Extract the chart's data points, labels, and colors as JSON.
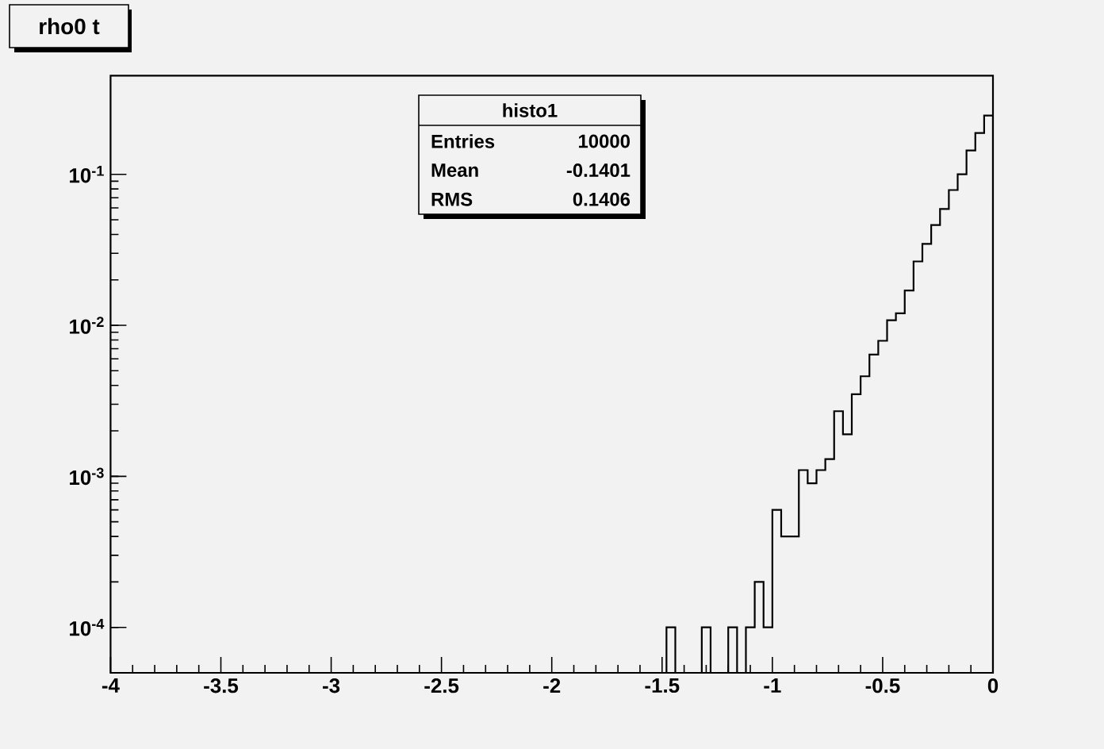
{
  "chart_data": {
    "type": "histogram",
    "title": "rho0 t",
    "annotations": [
      "histo1",
      "Entries",
      "10000",
      "Mean",
      "-0.1401",
      "RMS",
      "0.1406"
    ],
    "bins": [
      -4,
      -3.96,
      -3.92,
      -3.88,
      -3.84,
      -3.8,
      -3.76,
      -3.72,
      -3.68,
      -3.64,
      -3.6,
      -3.56,
      -3.52,
      -3.48,
      -3.44,
      -3.4,
      -3.36,
      -3.32,
      -3.28,
      -3.24,
      -3.2,
      -3.16,
      -3.12,
      -3.08,
      -3.04,
      -3,
      -2.96,
      -2.92,
      -2.88,
      -2.84,
      -2.8,
      -2.76,
      -2.72,
      -2.68,
      -2.64,
      -2.6,
      -2.56,
      -2.52,
      -2.48,
      -2.44,
      -2.4,
      -2.36,
      -2.32,
      -2.28,
      -2.24,
      -2.2,
      -2.16,
      -2.12,
      -2.08,
      -2.04,
      -2,
      -1.96,
      -1.92,
      -1.88,
      -1.84,
      -1.8,
      -1.76,
      -1.72,
      -1.68,
      -1.64,
      -1.6,
      -1.56,
      -1.52,
      -1.48,
      -1.44,
      -1.4,
      -1.36,
      -1.32,
      -1.28,
      -1.24,
      -1.2,
      -1.16,
      -1.12,
      -1.08,
      -1.04,
      -1,
      -0.96,
      -0.92,
      -0.88,
      -0.84,
      -0.8,
      -0.76,
      -0.72,
      -0.68,
      -0.64,
      -0.6,
      -0.56,
      -0.52,
      -0.48,
      -0.44,
      -0.4,
      -0.36,
      -0.32,
      -0.28,
      -0.24,
      -0.2,
      -0.16,
      -0.12,
      -0.08,
      -0.04,
      0
    ],
    "values": [
      null,
      null,
      null,
      null,
      null,
      null,
      null,
      null,
      null,
      null,
      null,
      null,
      null,
      null,
      null,
      null,
      null,
      null,
      null,
      null,
      null,
      null,
      null,
      null,
      null,
      null,
      null,
      null,
      null,
      null,
      null,
      null,
      null,
      null,
      null,
      null,
      null,
      null,
      null,
      null,
      null,
      null,
      null,
      null,
      null,
      null,
      null,
      null,
      null,
      null,
      null,
      null,
      null,
      null,
      null,
      null,
      null,
      null,
      null,
      null,
      null,
      null,
      null,
      0.0001,
      null,
      null,
      null,
      0.0001,
      null,
      null,
      0.0001,
      null,
      0.0001,
      0.0002,
      0.0001,
      0.0006,
      0.0004,
      0.0004,
      0.0011,
      0.0009,
      0.0011,
      0.0013,
      0.0027,
      0.0019,
      0.0035,
      0.0046,
      0.0064,
      0.0079,
      0.0108,
      0.012,
      0.017,
      0.0265,
      0.0346,
      0.0462,
      0.0589,
      0.0787,
      0.1,
      0.144,
      0.188,
      0.245
    ],
    "color": "#000000",
    "log": "y",
    "xlim": [
      -4,
      0
    ],
    "xticks": [
      -4,
      -3.5,
      -3,
      -2.5,
      -2,
      -1.5,
      -1,
      -0.5,
      0
    ],
    "ylim": [
      5e-05,
      0.45
    ],
    "yticks": [
      {
        "value": 0.0001,
        "label": "10$^{-4}$"
      },
      {
        "value": 0.001,
        "label": "10$^{-3}$"
      },
      {
        "value": 0.01,
        "label": "10$^{-2}$"
      },
      {
        "value": 0.1,
        "label": "10$^{-1}$"
      }
    ]
  }
}
